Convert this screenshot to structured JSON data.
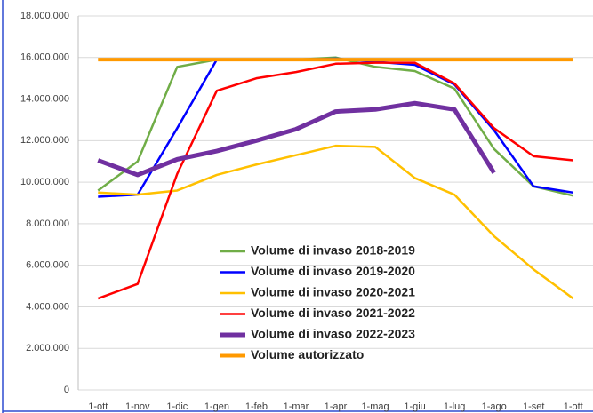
{
  "chart_data": {
    "type": "line",
    "categories": [
      "1-ott",
      "1-nov",
      "1-dic",
      "1-gen",
      "1-feb",
      "1-mar",
      "1-apr",
      "1-mag",
      "1-giu",
      "1-lug",
      "1-ago",
      "1-set",
      "1-ott"
    ],
    "series": [
      {
        "name": "Volume di invaso 2018-2019",
        "color": "#70ad47",
        "width": 2.5,
        "values": [
          9600000,
          11000000,
          15550000,
          15900000,
          15900000,
          15900000,
          16000000,
          15550000,
          15350000,
          14500000,
          11600000,
          9800000,
          9350000
        ]
      },
      {
        "name": "Volume di invaso 2019-2020",
        "color": "#0000ff",
        "width": 2.5,
        "values": [
          9300000,
          9400000,
          12600000,
          15900000,
          15900000,
          15900000,
          15950000,
          15800000,
          15650000,
          14700000,
          12500000,
          9800000,
          9500000
        ]
      },
      {
        "name": "Volume di invaso 2020-2021",
        "color": "#ffc000",
        "width": 2.5,
        "values": [
          9500000,
          9400000,
          9600000,
          10350000,
          10850000,
          11300000,
          11750000,
          11700000,
          10200000,
          9400000,
          7400000,
          5800000,
          4400000
        ]
      },
      {
        "name": "Volume di invaso 2021-2022",
        "color": "#ff0000",
        "width": 2.5,
        "values": [
          4400000,
          5100000,
          10400000,
          14400000,
          15000000,
          15300000,
          15700000,
          15750000,
          15750000,
          14750000,
          12600000,
          11250000,
          11050000
        ]
      },
      {
        "name": "Volume di invaso 2022-2023",
        "color": "#7030a0",
        "width": 5,
        "values": [
          11050000,
          10350000,
          11100000,
          11500000,
          12000000,
          12550000,
          13400000,
          13500000,
          13800000,
          13500000,
          10450000,
          null,
          null
        ]
      },
      {
        "name": "Volume autorizzato",
        "color": "#ff9900",
        "width": 4,
        "values": [
          15900000,
          15900000,
          15900000,
          15900000,
          15900000,
          15900000,
          15900000,
          15900000,
          15900000,
          15900000,
          15900000,
          15900000,
          15900000
        ]
      }
    ],
    "ylim": [
      0,
      18000000
    ],
    "yticks": [
      0,
      {
        "value": 2000000,
        "label": "2.000.000"
      },
      {
        "value": 4000000,
        "label": "4.000.000"
      },
      {
        "value": 6000000,
        "label": "6.000.000"
      },
      {
        "value": 8000000,
        "label": "8.000.000"
      },
      {
        "value": 10000000,
        "label": "10.000.000"
      },
      {
        "value": 12000000,
        "label": "12.000.000"
      },
      {
        "value": 14000000,
        "label": "14.000.000"
      },
      {
        "value": 16000000,
        "label": "16.000.000"
      },
      {
        "value": 18000000,
        "label": "18.000.000"
      }
    ],
    "grid": true,
    "legend": "lower center"
  }
}
